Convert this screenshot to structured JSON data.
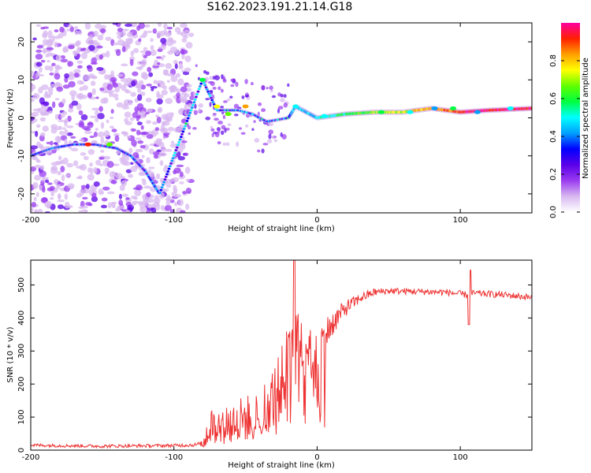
{
  "title": "S162.2023.191.21.14.G18",
  "colors": {
    "background": "#ffffff",
    "axes": "#000000",
    "snr_line": "#ee3333",
    "colormap": [
      "#ffffff",
      "#d8b8f0",
      "#9a3cf0",
      "#5a00e8",
      "#0000ff",
      "#00a0ff",
      "#00ffff",
      "#00ff40",
      "#60ff00",
      "#ffff00",
      "#ffa000",
      "#ff2000",
      "#ff00a0"
    ]
  },
  "chart_data": [
    {
      "type": "heatmap",
      "title": "S162.2023.191.21.14.G18",
      "xlabel": "Height of straight line (km)",
      "ylabel": "Frequency (Hz)",
      "xlim": [
        -200,
        150
      ],
      "ylim": [
        -25,
        25
      ],
      "xticks": [
        -200,
        -100,
        0,
        100
      ],
      "yticks": [
        -20,
        -10,
        0,
        10,
        20
      ],
      "grid": false,
      "colorbar": {
        "label": "Normalized spectral amplitude",
        "range": [
          0,
          1
        ],
        "ticks": [
          "0.0",
          "0.2",
          "0.4",
          "0.6",
          "0.8"
        ]
      },
      "ridge": {
        "description_points": [
          {
            "x": -200,
            "y": -10
          },
          {
            "x": -185,
            "y": -8
          },
          {
            "x": -170,
            "y": -7
          },
          {
            "x": -155,
            "y": -7
          },
          {
            "x": -140,
            "y": -8
          },
          {
            "x": -130,
            "y": -10
          },
          {
            "x": -120,
            "y": -14
          },
          {
            "x": -110,
            "y": -20
          },
          {
            "x": -90,
            "y": 0
          },
          {
            "x": -80,
            "y": 10
          },
          {
            "x": -70,
            "y": 2
          },
          {
            "x": -55,
            "y": 2
          },
          {
            "x": -45,
            "y": 1
          },
          {
            "x": -35,
            "y": -1
          },
          {
            "x": -20,
            "y": 0
          },
          {
            "x": -15,
            "y": 3
          },
          {
            "x": 0,
            "y": 0
          },
          {
            "x": 20,
            "y": 1
          },
          {
            "x": 40,
            "y": 1.5
          },
          {
            "x": 60,
            "y": 1.5
          },
          {
            "x": 80,
            "y": 2.5
          },
          {
            "x": 100,
            "y": 1.5
          },
          {
            "x": 120,
            "y": 2
          },
          {
            "x": 150,
            "y": 2.5
          }
        ]
      }
    },
    {
      "type": "line",
      "xlabel": "Height of straight line (km)",
      "ylabel": "SNR (10 * v/v)",
      "xlim": [
        -200,
        150
      ],
      "ylim": [
        0,
        575
      ],
      "xticks": [
        -200,
        -100,
        0,
        100
      ],
      "yticks": [
        0,
        100,
        200,
        300,
        400,
        500
      ],
      "grid": false,
      "envelope": {
        "x": [
          -200,
          -150,
          -100,
          -85,
          -80,
          -75,
          -70,
          -60,
          -50,
          -40,
          -30,
          -25,
          -20,
          -15,
          -10,
          -5,
          0,
          10,
          20,
          30,
          40,
          50,
          70,
          90,
          105,
          110,
          130,
          150
        ],
        "y": [
          15,
          12,
          14,
          16,
          20,
          80,
          70,
          90,
          95,
          110,
          160,
          200,
          260,
          300,
          330,
          320,
          300,
          380,
          430,
          460,
          478,
          482,
          480,
          478,
          470,
          475,
          470,
          462
        ],
        "noise": [
          5,
          5,
          5,
          6,
          8,
          55,
          50,
          65,
          70,
          80,
          100,
          110,
          130,
          120,
          110,
          100,
          80,
          40,
          25,
          15,
          12,
          10,
          10,
          10,
          10,
          10,
          10,
          10
        ]
      },
      "peaks": [
        {
          "x": -16,
          "y": 575
        },
        {
          "x": 107,
          "y": 545
        },
        {
          "x": 106,
          "y": 380
        }
      ]
    }
  ]
}
